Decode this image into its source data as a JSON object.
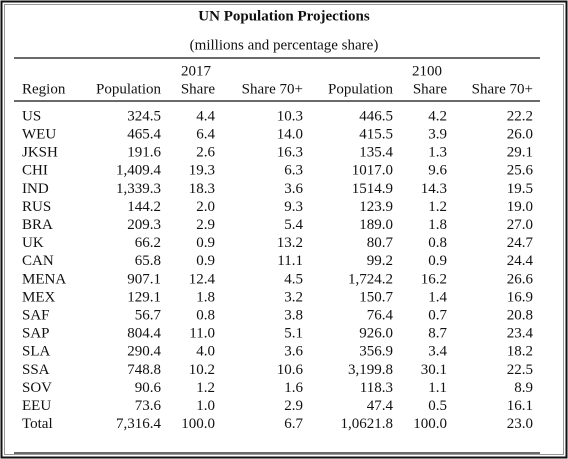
{
  "title": "UN Population Projections",
  "subtitle": "(millions and percentage share)",
  "header": {
    "years": [
      "2017",
      "2100"
    ],
    "columns": [
      "Region",
      "Population",
      "Share",
      "Share 70+",
      "Population",
      "Share",
      "Share 70+"
    ]
  },
  "rows": [
    [
      "US",
      "324.5",
      "4.4",
      "10.3",
      "446.5",
      "4.2",
      "22.2"
    ],
    [
      "WEU",
      "465.4",
      "6.4",
      "14.0",
      "415.5",
      "3.9",
      "26.0"
    ],
    [
      "JKSH",
      "191.6",
      "2.6",
      "16.3",
      "135.4",
      "1.3",
      "29.1"
    ],
    [
      "CHI",
      "1,409.4",
      "19.3",
      "6.3",
      "1017.0",
      "9.6",
      "25.6"
    ],
    [
      "IND",
      "1,339.3",
      "18.3",
      "3.6",
      "1514.9",
      "14.3",
      "19.5"
    ],
    [
      "RUS",
      "144.2",
      "2.0",
      "9.3",
      "123.9",
      "1.2",
      "19.0"
    ],
    [
      "BRA",
      "209.3",
      "2.9",
      "5.4",
      "189.0",
      "1.8",
      "27.0"
    ],
    [
      "UK",
      "66.2",
      "0.9",
      "13.2",
      "80.7",
      "0.8",
      "24.7"
    ],
    [
      "CAN",
      "65.8",
      "0.9",
      "11.1",
      "99.2",
      "0.9",
      "24.4"
    ],
    [
      "MENA",
      "907.1",
      "12.4",
      "4.5",
      "1,724.2",
      "16.2",
      "26.6"
    ],
    [
      "MEX",
      "129.1",
      "1.8",
      "3.2",
      "150.7",
      "1.4",
      "16.9"
    ],
    [
      "SAF",
      "56.7",
      "0.8",
      "3.8",
      "76.4",
      "0.7",
      "20.8"
    ],
    [
      "SAP",
      "804.4",
      "11.0",
      "5.1",
      "926.0",
      "8.7",
      "23.4"
    ],
    [
      "SLA",
      "290.4",
      "4.0",
      "3.6",
      "356.9",
      "3.4",
      "18.2"
    ],
    [
      "SSA",
      "748.8",
      "10.2",
      "10.6",
      "3,199.8",
      "30.1",
      "22.5"
    ],
    [
      "SOV",
      "90.6",
      "1.2",
      "1.6",
      "118.3",
      "1.1",
      "8.9"
    ],
    [
      "EEU",
      "73.6",
      "1.0",
      "2.9",
      "47.4",
      "0.5",
      "16.1"
    ],
    [
      "Total",
      "7,316.4",
      "100.0",
      "6.7",
      "1,0621.8",
      "100.0",
      "23.0"
    ]
  ]
}
